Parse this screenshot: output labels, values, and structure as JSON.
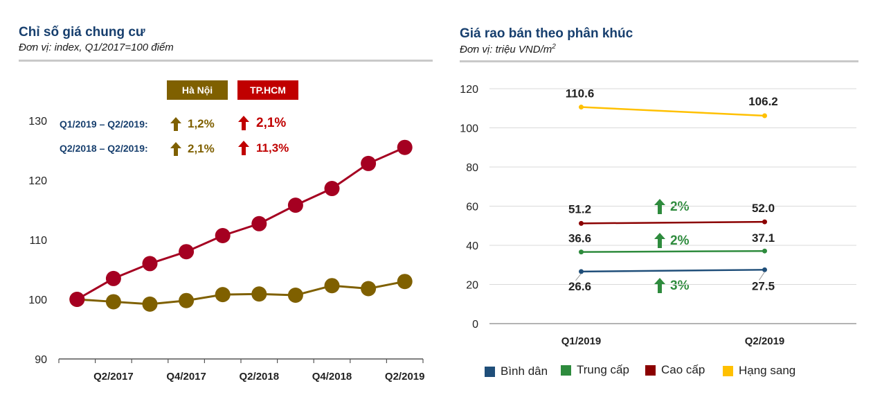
{
  "left": {
    "title": "Chỉ số giá chung cư",
    "subtitle": "Đơn vị: index, Q1/2017=100 điểm",
    "legend": [
      {
        "label": "Hà Nội",
        "color": "#7f6000"
      },
      {
        "label": "TP.HCM",
        "color": "#c00000"
      }
    ],
    "annotations": [
      {
        "period": "Q1/2019 – Q2/2019:",
        "hn": "1,2%",
        "hcm": "2,1%"
      },
      {
        "period": "Q2/2018 – Q2/2019:",
        "hn": "2,1%",
        "hcm": "11,3%"
      }
    ]
  },
  "right": {
    "title": "Giá rao bán theo phân khúc",
    "subtitle": "Đơn vị: triệu VND/m",
    "subtitle_sup": "2",
    "growth": [
      "2%",
      "2%",
      "3%"
    ],
    "growth_color": "#2e8b3d"
  },
  "chart_data": [
    {
      "type": "line",
      "title": "Chỉ số giá chung cư",
      "x": [
        "Q1/2017",
        "Q2/2017",
        "Q3/2017",
        "Q4/2017",
        "Q1/2018",
        "Q2/2018",
        "Q3/2018",
        "Q4/2018",
        "Q1/2019",
        "Q2/2019"
      ],
      "x_tick_labels": [
        "Q2/2017",
        "Q4/2017",
        "Q2/2018",
        "Q4/2018",
        "Q2/2019"
      ],
      "ylim": [
        90,
        130
      ],
      "y_ticks": [
        90,
        100,
        110,
        120,
        130
      ],
      "series": [
        {
          "name": "Hà Nội",
          "color": "#7f6000",
          "values": [
            100,
            99.6,
            99.2,
            99.8,
            100.8,
            100.9,
            100.7,
            102.3,
            101.8,
            103.0
          ]
        },
        {
          "name": "TP.HCM",
          "color": "#a50021",
          "values": [
            100,
            103.5,
            106.0,
            108.0,
            110.7,
            112.7,
            115.8,
            118.6,
            122.8,
            125.5
          ]
        }
      ]
    },
    {
      "type": "line",
      "title": "Giá rao bán theo phân khúc",
      "x": [
        "Q1/2019",
        "Q2/2019"
      ],
      "ylim": [
        0,
        120
      ],
      "y_ticks": [
        0,
        20,
        40,
        60,
        80,
        100,
        120
      ],
      "legend": "bottom",
      "series": [
        {
          "name": "Bình dân",
          "color": "#1f4e79",
          "values": [
            26.6,
            27.5
          ],
          "labels": [
            "26.6",
            "27.5"
          ]
        },
        {
          "name": "Trung cấp",
          "color": "#2e8b3d",
          "values": [
            36.6,
            37.1
          ],
          "labels": [
            "36.6",
            "37.1"
          ]
        },
        {
          "name": "Cao cấp",
          "color": "#8b0000",
          "values": [
            51.2,
            52.0
          ],
          "labels": [
            "51.2",
            "52.0"
          ]
        },
        {
          "name": "Hạng sang",
          "color": "#ffc000",
          "values": [
            110.6,
            106.2
          ],
          "labels": [
            "110.6",
            "106.2"
          ]
        }
      ]
    }
  ]
}
